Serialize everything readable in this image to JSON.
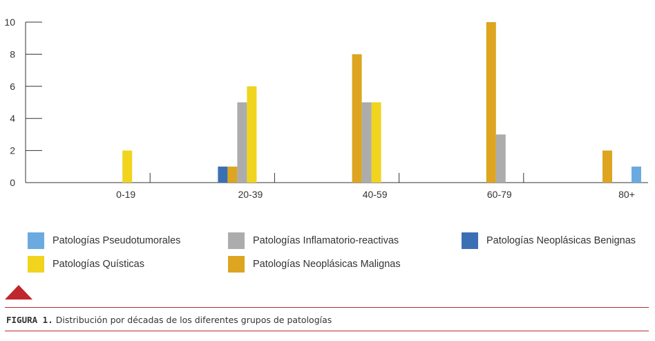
{
  "chart_data": {
    "type": "bar",
    "categories": [
      "0-19",
      "20-39",
      "40-59",
      "60-79",
      "80+"
    ],
    "series": [
      {
        "name": "Patologías Pseudotumorales",
        "color": "#6aaae0",
        "values": [
          0,
          0,
          0,
          0,
          1
        ]
      },
      {
        "name": "Patologías Neoplásicas Benignas",
        "color": "#3b6fb4",
        "values": [
          0,
          1,
          0,
          0,
          0
        ]
      },
      {
        "name": "Patologías Neoplásicas Malignas",
        "color": "#dda520",
        "values": [
          0,
          1,
          8,
          10,
          2
        ]
      },
      {
        "name": "Patologías Inflamatorio-reactivas",
        "color": "#acacac",
        "values": [
          0,
          5,
          5,
          3,
          0
        ]
      },
      {
        "name": "Patologías Quísticas",
        "color": "#f0d41e",
        "values": [
          2,
          6,
          5,
          0,
          0
        ]
      }
    ],
    "ylim": [
      0,
      10
    ],
    "yticks": [
      "0",
      "2",
      "4",
      "6",
      "8",
      "10"
    ],
    "grid": false,
    "legend_position": "bottom"
  },
  "legend": [
    {
      "label": "Patologías Pseudotumorales",
      "color": "#6aaae0"
    },
    {
      "label": "Patologías Inflamatorio-reactivas",
      "color": "#acacac"
    },
    {
      "label": "Patologías Neoplásicas Benignas",
      "color": "#3b6fb4"
    },
    {
      "label": "Patologías Quísticas",
      "color": "#f0d41e"
    },
    {
      "label": "Patologías Neoplásicas Malignas",
      "color": "#dda520"
    }
  ],
  "caption": {
    "label": "FIGURA 1.",
    "text": "Distribución por décadas de los diferentes grupos de patologías"
  },
  "accent_color": "#c0262d"
}
